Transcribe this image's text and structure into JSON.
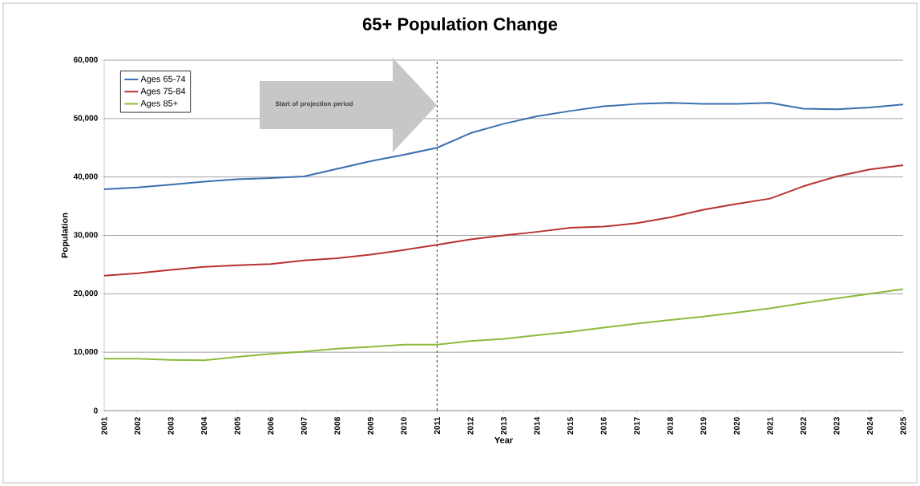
{
  "chart_data": {
    "type": "line",
    "title": "65+ Population Change",
    "xlabel": "Year",
    "ylabel": "Population",
    "x": [
      2001,
      2002,
      2003,
      2004,
      2005,
      2006,
      2007,
      2008,
      2009,
      2010,
      2011,
      2012,
      2013,
      2014,
      2015,
      2016,
      2017,
      2018,
      2019,
      2020,
      2021,
      2022,
      2023,
      2024,
      2025
    ],
    "series": [
      {
        "name": "Ages 65-74",
        "color": "#3a6fb0",
        "values": [
          37900,
          38200,
          38700,
          39200,
          39600,
          39800,
          40100,
          41400,
          42700,
          43800,
          45000,
          47500,
          49100,
          50400,
          51300,
          52100,
          52500,
          52700,
          52500,
          52500,
          52700,
          51700,
          51600,
          51900,
          52400
        ]
      },
      {
        "name": "Ages 75-84",
        "color": "#b83232",
        "values": [
          23100,
          23500,
          24100,
          24600,
          24900,
          25100,
          25700,
          26100,
          26700,
          27500,
          28400,
          29300,
          30000,
          30600,
          31300,
          31500,
          32100,
          33100,
          34400,
          35400,
          36300,
          38400,
          40100,
          41300,
          42000
        ]
      },
      {
        "name": "Ages 85+",
        "color": "#8cba3c",
        "values": [
          8900,
          8900,
          8700,
          8600,
          9200,
          9700,
          10100,
          10600,
          10900,
          11300,
          11300,
          11900,
          12300,
          12900,
          13500,
          14200,
          14900,
          15500,
          16100,
          16800,
          17500,
          18400,
          19200,
          20000,
          20800
        ]
      }
    ],
    "xlim": [
      2001,
      2025
    ],
    "xticks": [
      2001,
      2002,
      2003,
      2004,
      2005,
      2006,
      2007,
      2008,
      2009,
      2010,
      2011,
      2012,
      2013,
      2014,
      2015,
      2016,
      2017,
      2018,
      2019,
      2020,
      2021,
      2022,
      2023,
      2024,
      2025
    ],
    "ylim": [
      0,
      60000
    ],
    "yticks": [
      0,
      {
        "value": 10000,
        "label": "10,000"
      },
      {
        "value": 20000,
        "label": "20,000"
      },
      {
        "value": 30000,
        "label": "30,000"
      },
      {
        "value": 40000,
        "label": "40,000"
      },
      {
        "value": 50000,
        "label": "50,000"
      },
      {
        "value": 60000,
        "label": "60,000"
      }
    ],
    "grid": "y",
    "legend": "top left",
    "marker": "none",
    "line_style": "solid",
    "ref_lines": [
      {
        "axis": "x",
        "value": 2011,
        "color": "#333333",
        "line_style": "dashed"
      }
    ],
    "annotations": [
      "Start of projection period"
    ]
  }
}
